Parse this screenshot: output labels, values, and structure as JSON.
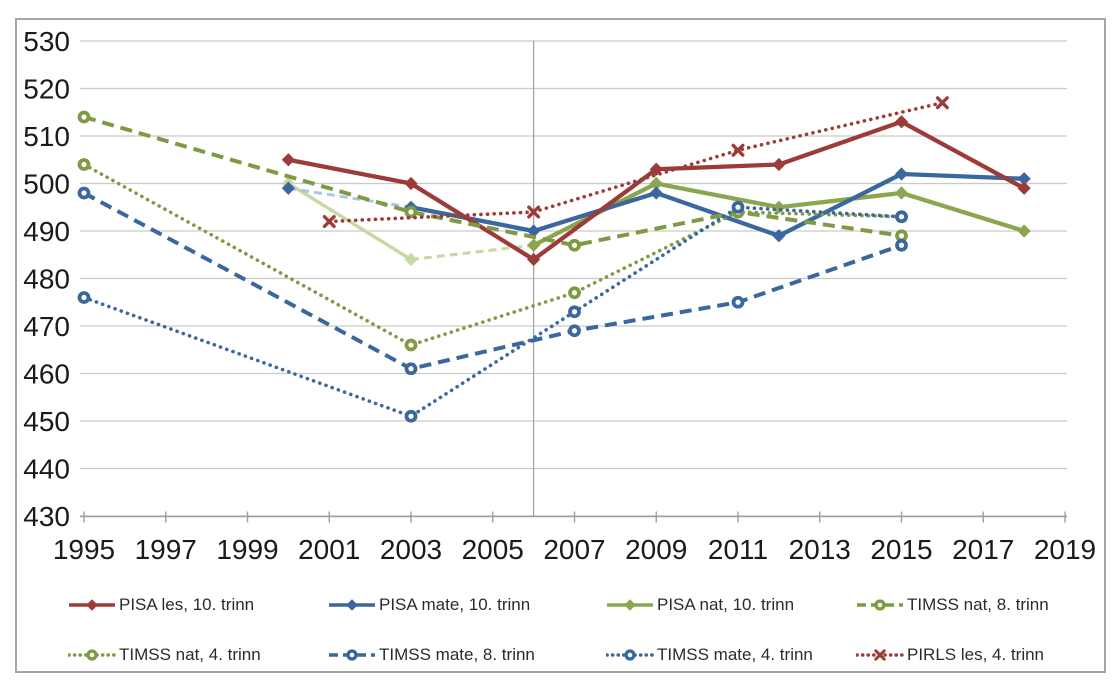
{
  "chart_data": {
    "type": "line",
    "title": "",
    "x_axis": {
      "min": 1995,
      "max": 2019,
      "tick_years": [
        1995,
        1997,
        1999,
        2001,
        2003,
        2005,
        2007,
        2009,
        2011,
        2013,
        2015,
        2017,
        2019
      ]
    },
    "y_axis": {
      "min": 430,
      "max": 530,
      "step": 10,
      "ticks": [
        430,
        440,
        450,
        460,
        470,
        480,
        490,
        500,
        510,
        520,
        530
      ]
    },
    "separator_year": 2006,
    "grid": "on",
    "legend_position": "bottom",
    "colors": {
      "red": "#9c3c39",
      "blue": "#3a679d",
      "green": "#8ca64f",
      "green_dark": "#7e9b44",
      "light_green": "#c7d9a2",
      "light_blue": "#a9c7e7",
      "gridline": "#c9c9c9",
      "axis": "#9e9e9e",
      "separator": "#a0a0a0",
      "axis_text": "#1a1a1a"
    },
    "series": [
      {
        "name": "PISA les, 10. trinn",
        "color": "#9c3c39",
        "line": "solid",
        "marker": "diamond",
        "points": [
          [
            2000,
            505
          ],
          [
            2003,
            500
          ],
          [
            2006,
            484
          ],
          [
            2009,
            503
          ],
          [
            2012,
            504
          ],
          [
            2015,
            513
          ],
          [
            2018,
            499
          ]
        ]
      },
      {
        "name": "PISA mate, 10. trinn",
        "color": "#3a679d",
        "line": "solid",
        "marker": "diamond",
        "points": [
          [
            2003,
            495
          ],
          [
            2006,
            490
          ],
          [
            2009,
            498
          ],
          [
            2012,
            489
          ],
          [
            2015,
            502
          ],
          [
            2018,
            501
          ]
        ],
        "extra_marker_points": [
          [
            2000,
            499
          ]
        ]
      },
      {
        "name": "PISA nat, 10. trinn",
        "color": "#8ca64f",
        "line": "solid",
        "marker": "diamond",
        "points": [
          [
            2006,
            487
          ],
          [
            2009,
            500
          ],
          [
            2012,
            495
          ],
          [
            2015,
            498
          ],
          [
            2018,
            490
          ]
        ]
      },
      {
        "name": "TIMSS nat, 8. trinn",
        "color": "#7e9b44",
        "line": "dashed",
        "marker": "circle",
        "points": [
          [
            1995,
            514
          ],
          [
            2003,
            494
          ],
          [
            2007,
            487
          ],
          [
            2011,
            494
          ],
          [
            2015,
            489
          ]
        ]
      },
      {
        "name": "TIMSS nat, 4. trinn",
        "color": "#7e9b44",
        "line": "dotted",
        "marker": "circle",
        "points": [
          [
            1995,
            504
          ],
          [
            2003,
            466
          ],
          [
            2007,
            477
          ],
          [
            2011,
            494
          ],
          [
            2015,
            493
          ]
        ]
      },
      {
        "name": "TIMSS mate, 8. trinn",
        "color": "#3a679d",
        "line": "dashed",
        "marker": "circle",
        "points": [
          [
            1995,
            498
          ],
          [
            2003,
            461
          ],
          [
            2007,
            469
          ],
          [
            2011,
            475
          ],
          [
            2015,
            487
          ]
        ]
      },
      {
        "name": "TIMSS mate, 4. trinn",
        "color": "#3a679d",
        "line": "dotted",
        "marker": "circle",
        "points": [
          [
            1995,
            476
          ],
          [
            2003,
            451
          ],
          [
            2007,
            473
          ],
          [
            2011,
            495
          ],
          [
            2015,
            493
          ]
        ]
      },
      {
        "name": "PIRLS les, 4. trinn",
        "color": "#9c3c39",
        "line": "dotted",
        "marker": "x",
        "points": [
          [
            2001,
            492
          ],
          [
            2006,
            494
          ],
          [
            2011,
            507
          ],
          [
            2016,
            517
          ]
        ]
      }
    ],
    "non_comparable_segments": [
      {
        "of_series": "PISA nat, 10. trinn",
        "color": "#c7d9a2",
        "line": "light-solid",
        "points": [
          [
            2000,
            500
          ],
          [
            2003,
            484
          ]
        ],
        "marker": "diamond",
        "marker_points": [
          [
            2000,
            500
          ],
          [
            2003,
            484
          ]
        ]
      },
      {
        "of_series": "PISA nat, 10. trinn",
        "color": "#c7d9a2",
        "line": "light-dashed",
        "points": [
          [
            2003,
            484
          ],
          [
            2006,
            487
          ]
        ]
      },
      {
        "of_series": "PISA mate, 10. trinn",
        "color": "#a9c7e7",
        "line": "light-dashed",
        "points": [
          [
            2000,
            499
          ],
          [
            2003,
            495
          ]
        ]
      }
    ]
  },
  "legend": {
    "items": [
      "PISA les, 10. trinn",
      "PISA mate, 10. trinn",
      "PISA nat, 10. trinn",
      "TIMSS nat, 8. trinn",
      "TIMSS nat, 4. trinn",
      "TIMSS mate, 8. trinn",
      "TIMSS mate, 4. trinn",
      "PIRLS les, 4. trinn"
    ]
  }
}
